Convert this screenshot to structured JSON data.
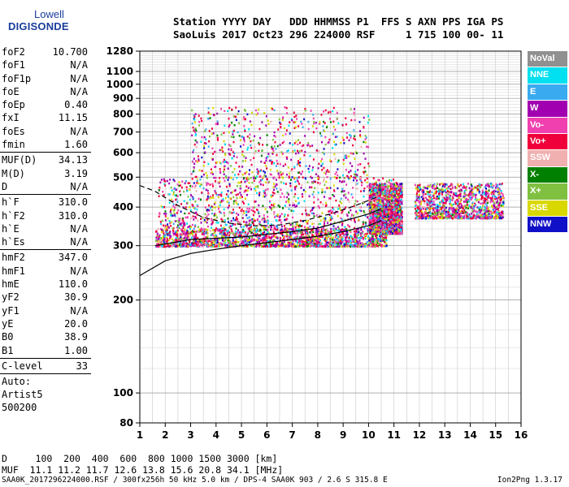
{
  "logo": {
    "line1": "Lowell",
    "line2": "DIGISONDE"
  },
  "header": {
    "row1": "Station YYYY DAY   DDD HHMMSS P1  FFS S AXN PPS IGA PS",
    "row2": "SaoLuis 2017 Oct23 296 224000 RSF     1 715 100 00- 11"
  },
  "params": {
    "group1": [
      {
        "k": "foF2",
        "v": "10.700"
      },
      {
        "k": "foF1",
        "v": "N/A"
      },
      {
        "k": "foF1p",
        "v": "N/A"
      },
      {
        "k": "foE",
        "v": "N/A"
      },
      {
        "k": "foEp",
        "v": "0.40"
      },
      {
        "k": "fxI",
        "v": "11.15"
      },
      {
        "k": "foEs",
        "v": "N/A"
      },
      {
        "k": "fmin",
        "v": "1.60"
      }
    ],
    "group2": [
      {
        "k": "MUF(D)",
        "v": "34.13"
      },
      {
        "k": "M(D)",
        "v": "3.19"
      },
      {
        "k": "D",
        "v": "N/A"
      }
    ],
    "group3": [
      {
        "k": "h`F",
        "v": "310.0"
      },
      {
        "k": "h`F2",
        "v": "310.0"
      },
      {
        "k": "h`E",
        "v": "N/A"
      },
      {
        "k": "h`Es",
        "v": "N/A"
      }
    ],
    "group4": [
      {
        "k": "hmF2",
        "v": "347.0"
      },
      {
        "k": "hmF1",
        "v": "N/A"
      },
      {
        "k": "hmE",
        "v": "110.0"
      },
      {
        "k": "yF2",
        "v": "30.9"
      },
      {
        "k": "yF1",
        "v": "N/A"
      },
      {
        "k": "yE",
        "v": "20.0"
      },
      {
        "k": "B0",
        "v": "38.9"
      },
      {
        "k": "B1",
        "v": "1.00"
      }
    ],
    "clevel": {
      "k": "C-level",
      "v": "33"
    },
    "auto": [
      "Auto:",
      "Artist5",
      "500200"
    ]
  },
  "legend": [
    {
      "label": "NoVal",
      "color": "#909090"
    },
    {
      "label": "NNE",
      "color": "#00e0f0"
    },
    {
      "label": "E",
      "color": "#3aaaf0"
    },
    {
      "label": "W",
      "color": "#a000b0"
    },
    {
      "label": "Vo-",
      "color": "#f040b0"
    },
    {
      "label": "Vo+",
      "color": "#f0003a"
    },
    {
      "label": "SSW",
      "color": "#f0b0b0"
    },
    {
      "label": "X-",
      "color": "#008000"
    },
    {
      "label": "X+",
      "color": "#80c040"
    },
    {
      "label": "SSE",
      "color": "#d8d800"
    },
    {
      "label": "NNW",
      "color": "#1010c8"
    }
  ],
  "footer": {
    "d_row": "D     100  200  400  600  800 1000 1500 3000 [km]",
    "muf_row": "MUF  11.1 11.2 11.7 12.6 13.8 15.6 20.8 34.1 [MHz]",
    "file": "SAA0K_2017296224000.RSF / 300fx256h 50 kHz 5.0 km / DPS-4 SAA0K 903 / 2.6 S 315.8 E",
    "version": "Ion2Png 1.3.17"
  },
  "chart_data": {
    "type": "scatter",
    "xlabel": "",
    "ylabel": "",
    "xlim": [
      1,
      16
    ],
    "ylim": [
      80,
      1280
    ],
    "yscale": "log",
    "x_ticks": [
      1,
      2,
      3,
      4,
      5,
      6,
      7,
      8,
      9,
      10,
      11,
      12,
      13,
      14,
      15,
      16
    ],
    "y_ticks": [
      80,
      100,
      200,
      300,
      400,
      500,
      600,
      700,
      800,
      900,
      1000,
      1100,
      1280
    ],
    "grid": true,
    "echo_bands": [
      {
        "x_from": 1.6,
        "x_to": 10.7,
        "h_from": 300,
        "h_to": 340,
        "density": "high"
      },
      {
        "x_from": 1.7,
        "x_to": 11.2,
        "h_from": 340,
        "h_to": 500,
        "density": "medium"
      },
      {
        "x_from": 3.0,
        "x_to": 10.0,
        "h_from": 500,
        "h_to": 850,
        "density": "low"
      },
      {
        "x_from": 10.0,
        "x_to": 11.3,
        "h_from": 330,
        "h_to": 480,
        "density": "high"
      },
      {
        "x_from": 11.8,
        "x_to": 15.3,
        "h_from": 370,
        "h_to": 480,
        "density": "medium"
      }
    ],
    "profile_curves": [
      {
        "name": "",
        "points": [
          [
            1,
            240
          ],
          [
            2,
            268
          ],
          [
            3,
            283
          ],
          [
            4,
            292
          ],
          [
            5,
            300
          ],
          [
            6,
            307
          ],
          [
            7,
            314
          ],
          [
            8,
            322
          ],
          [
            9,
            333
          ],
          [
            10,
            348
          ],
          [
            10.5,
            362
          ]
        ]
      },
      {
        "name": "",
        "points": [
          [
            1.6,
            300
          ],
          [
            3,
            314
          ],
          [
            5,
            320
          ],
          [
            7,
            333
          ],
          [
            8,
            342
          ],
          [
            9,
            360
          ],
          [
            10,
            380
          ],
          [
            10.5,
            395
          ]
        ]
      },
      {
        "name": "",
        "dashed": true,
        "points": [
          [
            1,
            470
          ],
          [
            1.6,
            450
          ],
          [
            2.5,
            405
          ],
          [
            3.5,
            370
          ],
          [
            4.5,
            355
          ],
          [
            5.5,
            348
          ],
          [
            6.5,
            350
          ],
          [
            7.5,
            362
          ],
          [
            8.5,
            380
          ],
          [
            9.5,
            405
          ],
          [
            10.3,
            430
          ]
        ]
      }
    ]
  }
}
